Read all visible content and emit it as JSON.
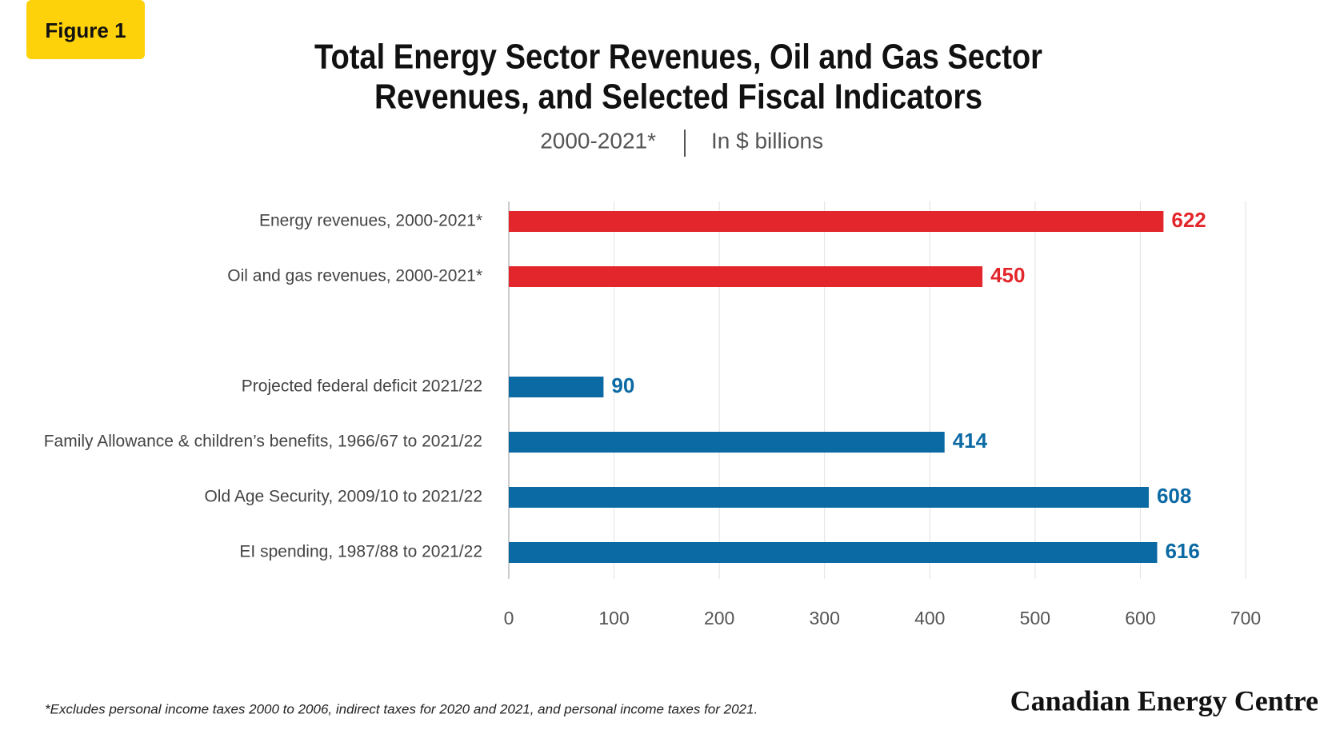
{
  "figure_label": "Figure 1",
  "chart_data": {
    "type": "hbar",
    "title": [
      "Total Energy Sector Revenues, Oil and Gas Sector",
      "Revenues, and Selected Fiscal Indicators"
    ],
    "subtitle": [
      "2000-2021*",
      "In $ billions"
    ],
    "categories": [
      "Energy revenues, 2000-2021*",
      "Oil and gas revenues, 2000-2021*",
      null,
      "Projected federal deficit 2021/22",
      "Family Allowance & children’s benefits, 1966/67 to 2021/22",
      "Old Age Security, 2009/10 to 2021/22",
      "EI spending, 1987/88 to 2021/22"
    ],
    "values": [
      622,
      450,
      null,
      90,
      414,
      608,
      616
    ],
    "colors": [
      "#e3262b",
      "#e3262b",
      null,
      "#0b69a3",
      "#0b69a3",
      "#0b69a3",
      "#0b69a3"
    ],
    "xlim": [
      0,
      700
    ],
    "xticks": [
      0,
      100,
      200,
      300,
      400,
      500,
      600,
      700
    ],
    "grid": true
  },
  "footnote": "*Excludes personal income taxes 2000 to 2006, indirect taxes for 2020 and 2021, and personal income taxes for 2021.",
  "source": "Canadian Energy Centre"
}
